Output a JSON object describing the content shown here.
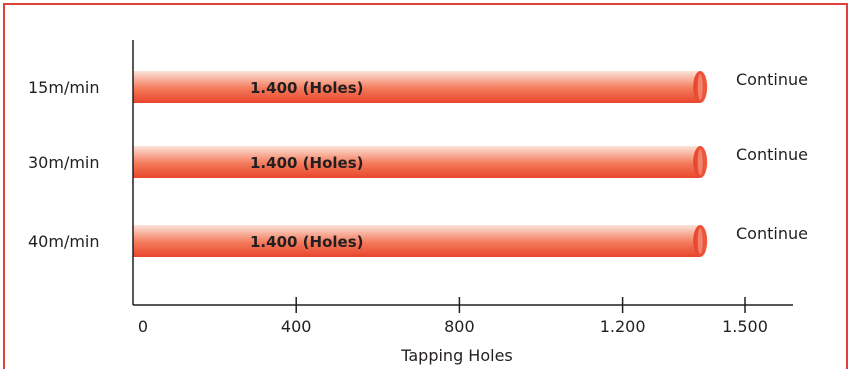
{
  "colors": {
    "frame": "#e0403a",
    "bar_light": "#fbe3d9",
    "bar_mid": "#f47a5a",
    "bar_dark": "#e8452c",
    "cap": "#f05a3d",
    "axis": "#231f20",
    "text": "#231f20"
  },
  "chart_data": {
    "type": "bar",
    "orientation": "horizontal",
    "categories": [
      "15m/min",
      "30m/min",
      "40m/min"
    ],
    "values": [
      1400,
      1400,
      1400
    ],
    "data_labels": [
      "1.400 (Holes)",
      "1.400 (Holes)",
      "1.400 (Holes)"
    ],
    "end_labels": [
      "Continue",
      "Continue",
      "Continue"
    ],
    "xlabel": "Tapping Holes",
    "ylabel": "",
    "xlim": [
      0,
      1550
    ],
    "xticks": [
      0,
      400,
      800,
      1200,
      1500
    ],
    "xtick_labels": [
      "0",
      "400",
      "800",
      "1.200",
      "1.500"
    ],
    "grid": false,
    "legend": "none"
  }
}
